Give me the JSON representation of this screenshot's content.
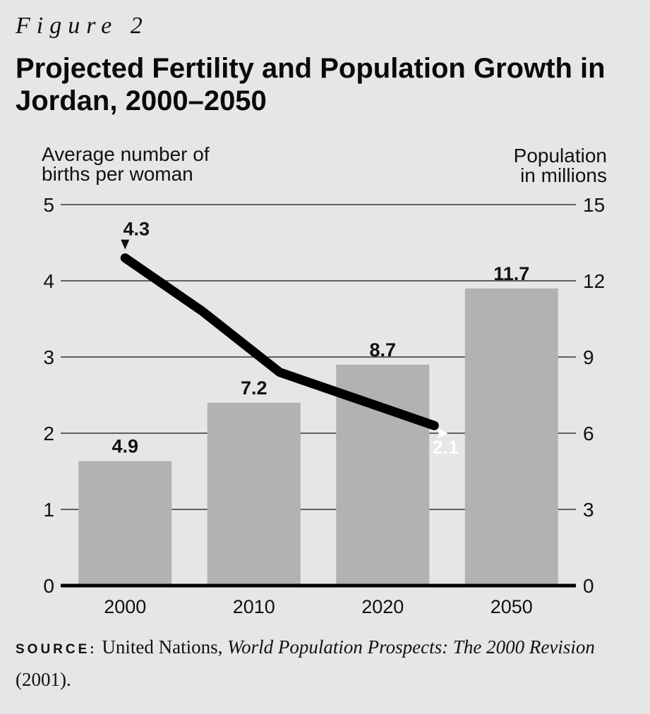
{
  "figure_label": "Figure 2",
  "title": "Projected Fertility and Population Growth in Jordan, 2000–2050",
  "source": {
    "label": "SOURCE:",
    "text_pre": " United Nations, ",
    "text_italic": "World Population Prospects: The 2000 Revision",
    "text_post": " (2001)."
  },
  "chart_data": {
    "type": "bar",
    "categories": [
      "2000",
      "2010",
      "2020",
      "2050"
    ],
    "left_axis": {
      "label_lines": [
        "Average number of",
        "births per woman"
      ],
      "ticks": [
        "0",
        "1",
        "2",
        "3",
        "4",
        "5"
      ],
      "ylim": [
        0,
        5
      ]
    },
    "right_axis": {
      "label_lines": [
        "Population",
        "in millions"
      ],
      "ticks": [
        "0",
        "3",
        "6",
        "9",
        "12",
        "15"
      ],
      "ylim": [
        0,
        15
      ]
    },
    "bars": {
      "axis": "right",
      "values": [
        4.9,
        7.2,
        8.7,
        11.7
      ],
      "labels": [
        "4.9",
        "7.2",
        "8.7",
        "11.7"
      ],
      "color": "#b2b2b2"
    },
    "line": {
      "axis": "left",
      "x": [
        2000,
        2010,
        2020,
        2040
      ],
      "values": [
        4.3,
        3.6,
        2.8,
        2.1
      ],
      "start_label": "4.3",
      "end_label": "2.1",
      "color": "#000000"
    },
    "grid": true
  }
}
